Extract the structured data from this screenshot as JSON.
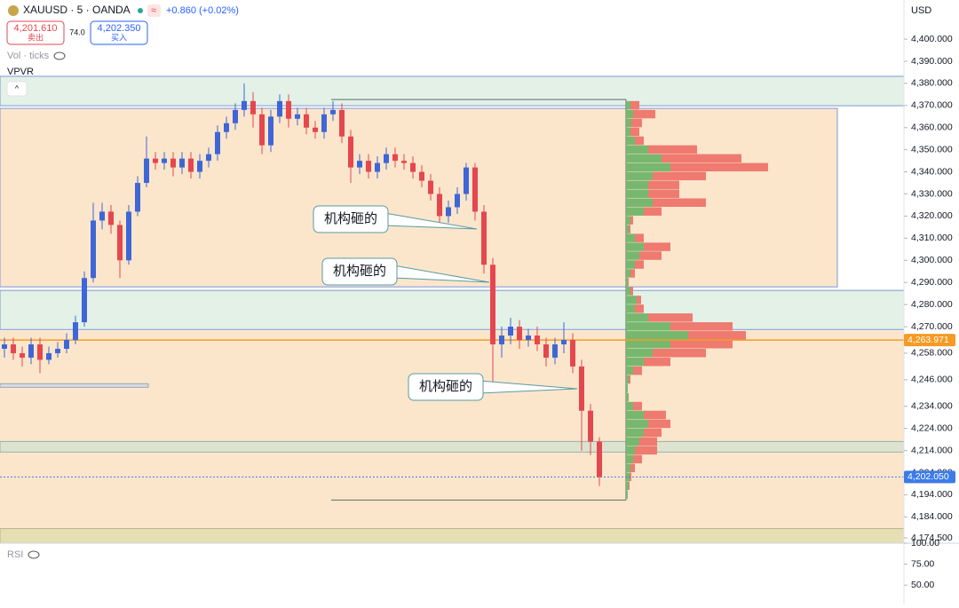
{
  "header": {
    "symbol": "XAUUSD · 5 · OANDA",
    "change": "+0.860 (+0.02%)",
    "sell_price": "4,201.610",
    "sell_label": "卖出",
    "spread": "74.0",
    "buy_price": "4,202.350",
    "buy_label": "买入",
    "volume_label": "Vol · ticks",
    "indicator": "VPVR"
  },
  "chart_data": [
    {
      "type": "candlestick",
      "axis_unit": "USD",
      "ylim": [
        4172.1,
        4417.7
      ],
      "yticks": [
        {
          "value": 4400,
          "label": "4,400.000"
        },
        {
          "value": 4390,
          "label": "4,390.000"
        },
        {
          "value": 4380,
          "label": "4,380.000"
        },
        {
          "value": 4370,
          "label": "4,370.000"
        },
        {
          "value": 4360,
          "label": "4,360.000"
        },
        {
          "value": 4350,
          "label": "4,350.000"
        },
        {
          "value": 4340,
          "label": "4,340.000"
        },
        {
          "value": 4330,
          "label": "4,330.000"
        },
        {
          "value": 4320,
          "label": "4,320.000"
        },
        {
          "value": 4310,
          "label": "4,310.000"
        },
        {
          "value": 4300,
          "label": "4,300.000"
        },
        {
          "value": 4290,
          "label": "4,290.000"
        },
        {
          "value": 4280,
          "label": "4,280.000"
        },
        {
          "value": 4270,
          "label": "4,270.000"
        },
        {
          "value": 4258,
          "label": "4,258.000"
        },
        {
          "value": 4246,
          "label": "4,246.000"
        },
        {
          "value": 4234,
          "label": "4,234.000"
        },
        {
          "value": 4224,
          "label": "4,224.000"
        },
        {
          "value": 4214,
          "label": "4,214.000"
        },
        {
          "value": 4204,
          "label": "4,204.000"
        },
        {
          "value": 4194,
          "label": "4,194.000"
        },
        {
          "value": 4184,
          "label": "4,184.000"
        },
        {
          "value": 4174.5,
          "label": "4,174.500"
        }
      ],
      "up_color": "#3f66d6",
      "down_color": "#e5474f",
      "open": [
        4260,
        4262,
        4258,
        4256,
        4262,
        4255,
        4258,
        4260,
        4264,
        4272,
        4292,
        4318,
        4322,
        4316,
        4300,
        4322,
        4335,
        4346,
        4344,
        4346,
        4342,
        4346,
        4340,
        4345,
        4348,
        4358,
        4362,
        4368,
        4372,
        4366,
        4352,
        4365,
        4372,
        4364,
        4366,
        4360,
        4358,
        4366,
        4368,
        4356,
        4342,
        4345,
        4340,
        4344,
        4348,
        4345,
        4344,
        4340,
        4336,
        4330,
        4320,
        4324,
        4330,
        4342,
        4322,
        4298,
        4262,
        4266,
        4270,
        4264,
        4266,
        4262,
        4256,
        4262,
        4264,
        4252,
        4232,
        4218
      ],
      "high": [
        4265,
        4265,
        4261,
        4265,
        4265,
        4261,
        4263,
        4267,
        4275,
        4295,
        4326,
        4326,
        4325,
        4318,
        4325,
        4338,
        4356,
        4349,
        4349,
        4349,
        4349,
        4349,
        4348,
        4351,
        4361,
        4365,
        4371,
        4380,
        4376,
        4369,
        4368,
        4375,
        4375,
        4369,
        4369,
        4363,
        4369,
        4372,
        4371,
        4359,
        4348,
        4348,
        4347,
        4351,
        4351,
        4348,
        4347,
        4343,
        4339,
        4333,
        4327,
        4333,
        4344,
        4344,
        4325,
        4301,
        4270,
        4274,
        4273,
        4269,
        4270,
        4265,
        4265,
        4272,
        4267,
        4255,
        4235,
        4220
      ],
      "low": [
        4256,
        4255,
        4252,
        4253,
        4249,
        4253,
        4256,
        4258,
        4262,
        4270,
        4290,
        4314,
        4312,
        4292,
        4298,
        4320,
        4333,
        4341,
        4341,
        4338,
        4339,
        4337,
        4337,
        4342,
        4345,
        4355,
        4359,
        4365,
        4360,
        4348,
        4349,
        4362,
        4360,
        4361,
        4357,
        4355,
        4355,
        4363,
        4353,
        4335,
        4339,
        4337,
        4337,
        4341,
        4342,
        4341,
        4337,
        4333,
        4327,
        4316,
        4317,
        4321,
        4327,
        4318,
        4294,
        4244,
        4256,
        4262,
        4260,
        4261,
        4259,
        4252,
        4253,
        4258,
        4249,
        4214,
        4212,
        4198
      ],
      "close": [
        4262,
        4258,
        4256,
        4262,
        4255,
        4258,
        4260,
        4264,
        4272,
        4292,
        4318,
        4322,
        4316,
        4300,
        4322,
        4335,
        4346,
        4344,
        4346,
        4342,
        4346,
        4340,
        4345,
        4348,
        4358,
        4362,
        4368,
        4372,
        4366,
        4352,
        4365,
        4372,
        4364,
        4366,
        4360,
        4358,
        4366,
        4368,
        4356,
        4342,
        4345,
        4340,
        4344,
        4348,
        4345,
        4344,
        4340,
        4336,
        4330,
        4320,
        4324,
        4330,
        4342,
        4322,
        4298,
        4262,
        4266,
        4270,
        4264,
        4266,
        4262,
        4256,
        4262,
        4264,
        4252,
        4232,
        4218,
        4202
      ],
      "zones": [
        {
          "low": 4369.9,
          "high": 4383.2,
          "color": "#e3f1e6",
          "border": "#7d97d6",
          "extend_right": true
        },
        {
          "low": 4288,
          "high": 4368.7,
          "color": "#fbe6cc",
          "border": "#7d97d6",
          "extend_right": false
        },
        {
          "low": 4268.7,
          "high": 4286.4,
          "color": "#e3f1e6",
          "border": "#7d97d6",
          "extend_right": true
        },
        {
          "low": 4176.7,
          "high": 4268.1,
          "color": "#fbe6cc",
          "border": "#fbe6cc",
          "extend_right": true
        },
        {
          "low": 4213.3,
          "high": 4218.1,
          "color": "#dde3cf",
          "border": "#9bb0a8",
          "extend_right": true
        },
        {
          "low": 4172.1,
          "high": 4178.7,
          "color": "#e5dfb3",
          "border": "#b9b48f",
          "extend_right": true
        },
        {
          "low": 4242.6,
          "high": 4244.2,
          "color": "#d9dde3",
          "border": "#9aa4b0",
          "extend_right": false
        }
      ],
      "price_lines": [
        {
          "value": 4263.971,
          "label": "4,263.971",
          "color": "#f59a23"
        },
        {
          "value": 4202.05,
          "label": "4,202.050",
          "color": "#3d7be8"
        }
      ],
      "annotations": [
        {
          "text": "机构砸的"
        },
        {
          "text": "机构砸的"
        },
        {
          "text": "机构砸的"
        }
      ],
      "volume_profile": {
        "price_range": [
          4191.6,
          4372.7
        ],
        "row_size": 4,
        "xlim": [
          0,
          160
        ],
        "up_color": "#78b86e",
        "down_color": "#ef7a70",
        "prices": [
          4368,
          4364,
          4360,
          4356,
          4352,
          4348,
          4344,
          4340,
          4336,
          4332,
          4328,
          4324,
          4320,
          4316,
          4312,
          4308,
          4304,
          4300,
          4296,
          4292,
          4288,
          4284,
          4280,
          4276,
          4272,
          4268,
          4264,
          4260,
          4256,
          4252,
          4248,
          4244,
          4240,
          4236,
          4232,
          4228,
          4224,
          4220,
          4216,
          4212,
          4208,
          4204,
          4200,
          4196,
          4192
        ],
        "up": [
          5,
          8,
          6,
          5,
          10,
          25,
          40,
          50,
          30,
          25,
          25,
          30,
          20,
          5,
          3,
          10,
          20,
          15,
          10,
          5,
          2,
          5,
          12,
          10,
          25,
          50,
          70,
          50,
          30,
          20,
          8,
          3,
          2,
          3,
          8,
          20,
          25,
          20,
          15,
          10,
          8,
          5,
          4,
          3,
          2
        ],
        "down": [
          10,
          25,
          12,
          10,
          10,
          55,
          90,
          110,
          60,
          35,
          35,
          60,
          20,
          3,
          2,
          10,
          30,
          25,
          10,
          5,
          1,
          3,
          5,
          10,
          50,
          70,
          65,
          70,
          60,
          30,
          10,
          2,
          0,
          0,
          10,
          25,
          25,
          20,
          20,
          25,
          10,
          5,
          2,
          1,
          0
        ]
      }
    },
    {
      "type": "line",
      "title": "RSI",
      "ylim": [
        28,
        100
      ],
      "yticks": [
        {
          "value": 100,
          "label": "100.00"
        },
        {
          "value": 75,
          "label": "75.00"
        },
        {
          "value": 50,
          "label": "50.00"
        }
      ]
    }
  ]
}
